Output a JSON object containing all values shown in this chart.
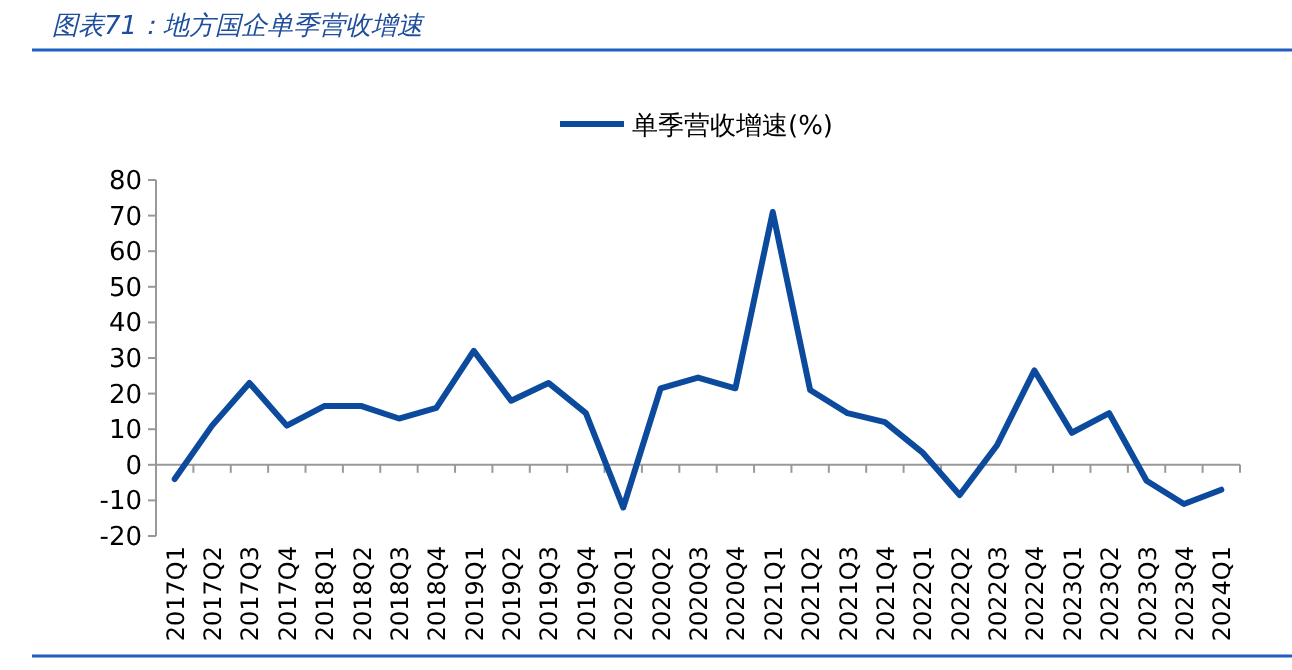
{
  "chart_data": {
    "type": "line",
    "title": "图表71：地方国企单季营收增速",
    "categories": [
      "2017Q1",
      "2017Q2",
      "2017Q3",
      "2017Q4",
      "2018Q1",
      "2018Q2",
      "2018Q3",
      "2018Q4",
      "2019Q1",
      "2019Q2",
      "2019Q3",
      "2019Q4",
      "2020Q1",
      "2020Q2",
      "2020Q3",
      "2020Q4",
      "2021Q1",
      "2021Q2",
      "2021Q3",
      "2021Q4",
      "2022Q1",
      "2022Q2",
      "2022Q3",
      "2022Q4",
      "2023Q1",
      "2023Q2",
      "2023Q3",
      "2023Q4",
      "2024Q1"
    ],
    "series": [
      {
        "name": "单季营收增速(%)",
        "color": "#0b4a9c",
        "values": [
          -4,
          11,
          23,
          11,
          16.5,
          16.5,
          13,
          16,
          32,
          18,
          23,
          14.5,
          -12,
          21.5,
          24.5,
          21.5,
          71,
          21,
          14.5,
          12,
          3.5,
          -8.5,
          5.5,
          26.5,
          9,
          14.5,
          -4.5,
          -11,
          -7
        ]
      }
    ],
    "ylim": [
      -20,
      80
    ],
    "yticks": [
      -20,
      -10,
      0,
      10,
      20,
      30,
      40,
      50,
      60,
      70,
      80
    ],
    "legend": "top",
    "marker": "none",
    "line_style": "solid"
  }
}
